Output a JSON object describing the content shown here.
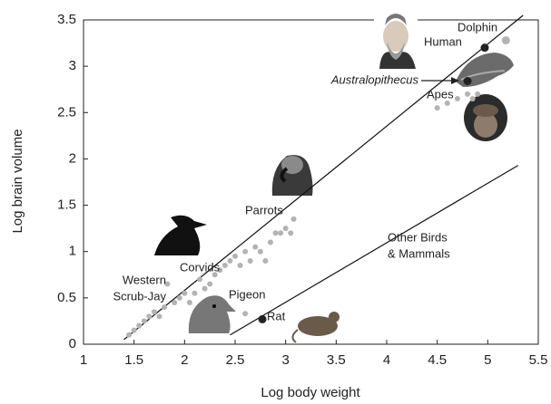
{
  "chart_data": {
    "type": "scatter",
    "x_label": "Log body weight",
    "y_label": "Log brain volume",
    "xlim": [
      1,
      5.5
    ],
    "xticks": [
      1,
      1.5,
      2,
      2.5,
      3,
      3.5,
      4,
      4.5,
      5,
      5.5
    ],
    "ylim": [
      0,
      3.5
    ],
    "yticks": [
      0,
      0.5,
      1,
      1.5,
      2,
      2.5,
      3,
      3.5
    ],
    "grid": false,
    "series": [
      {
        "color": "#b3b3b3",
        "x": [
          1.45,
          1.5,
          1.55,
          1.6,
          1.65,
          1.7,
          1.75,
          1.8,
          1.83,
          1.9,
          1.95,
          2.0,
          2.05,
          2.1,
          2.15,
          2.2,
          2.25,
          2.3,
          2.35,
          2.4,
          2.45,
          2.5,
          2.55,
          2.6,
          2.65,
          2.7,
          2.75,
          2.8,
          2.85,
          2.9,
          2.95,
          3.0,
          3.05,
          3.08,
          2.6,
          4.5,
          4.6,
          4.7,
          4.8,
          4.85,
          4.9,
          5.18
        ],
        "values": [
          0.1,
          0.15,
          0.2,
          0.25,
          0.3,
          0.35,
          0.3,
          0.4,
          0.65,
          0.45,
          0.5,
          0.55,
          0.45,
          0.55,
          0.7,
          0.6,
          0.65,
          0.75,
          0.8,
          0.85,
          0.9,
          0.95,
          0.85,
          1.0,
          0.9,
          1.05,
          1.0,
          0.9,
          1.1,
          1.2,
          1.2,
          1.25,
          1.2,
          1.35,
          0.33,
          2.55,
          2.6,
          2.65,
          2.7,
          2.65,
          2.7,
          3.28
        ]
      },
      {
        "color": "#222222",
        "x": [
          4.97,
          4.8,
          2.77
        ],
        "values": [
          3.2,
          2.84,
          0.27
        ]
      }
    ],
    "lines": [
      {
        "x": [
          1.4,
          5.35
        ],
        "values": [
          0.05,
          3.55
        ]
      },
      {
        "x": [
          2.45,
          5.3
        ],
        "values": [
          0.1,
          1.93
        ]
      }
    ],
    "annotations": [
      [
        "Dolphin"
      ],
      [
        "Human"
      ],
      [
        "Australopithecus"
      ],
      [
        "Apes"
      ],
      [
        "Parrots"
      ],
      [
        "Corvids"
      ],
      [
        "Western",
        "Scrub-Jay"
      ],
      [
        "Pigeon"
      ],
      [
        "Rat"
      ],
      [
        "Other Birds",
        "& Mammals"
      ]
    ]
  }
}
